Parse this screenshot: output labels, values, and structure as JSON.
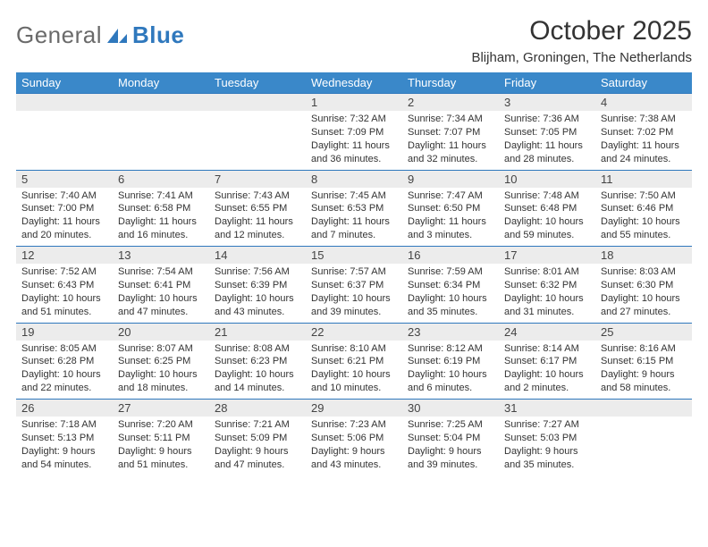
{
  "logo": {
    "general": "General",
    "blue": "Blue"
  },
  "title": "October 2025",
  "subtitle": "Blijham, Groningen, The Netherlands",
  "colors": {
    "header_bg": "#3a88c9",
    "border": "#2f78bd",
    "daynum_bg": "#ececec",
    "text": "#333333",
    "logo_gray": "#6a6a6a",
    "logo_blue": "#2f78bd"
  },
  "weekdays": [
    "Sunday",
    "Monday",
    "Tuesday",
    "Wednesday",
    "Thursday",
    "Friday",
    "Saturday"
  ],
  "weeks": [
    [
      null,
      null,
      null,
      {
        "n": "1",
        "sr": "Sunrise: 7:32 AM",
        "ss": "Sunset: 7:09 PM",
        "dl": "Daylight: 11 hours and 36 minutes."
      },
      {
        "n": "2",
        "sr": "Sunrise: 7:34 AM",
        "ss": "Sunset: 7:07 PM",
        "dl": "Daylight: 11 hours and 32 minutes."
      },
      {
        "n": "3",
        "sr": "Sunrise: 7:36 AM",
        "ss": "Sunset: 7:05 PM",
        "dl": "Daylight: 11 hours and 28 minutes."
      },
      {
        "n": "4",
        "sr": "Sunrise: 7:38 AM",
        "ss": "Sunset: 7:02 PM",
        "dl": "Daylight: 11 hours and 24 minutes."
      }
    ],
    [
      {
        "n": "5",
        "sr": "Sunrise: 7:40 AM",
        "ss": "Sunset: 7:00 PM",
        "dl": "Daylight: 11 hours and 20 minutes."
      },
      {
        "n": "6",
        "sr": "Sunrise: 7:41 AM",
        "ss": "Sunset: 6:58 PM",
        "dl": "Daylight: 11 hours and 16 minutes."
      },
      {
        "n": "7",
        "sr": "Sunrise: 7:43 AM",
        "ss": "Sunset: 6:55 PM",
        "dl": "Daylight: 11 hours and 12 minutes."
      },
      {
        "n": "8",
        "sr": "Sunrise: 7:45 AM",
        "ss": "Sunset: 6:53 PM",
        "dl": "Daylight: 11 hours and 7 minutes."
      },
      {
        "n": "9",
        "sr": "Sunrise: 7:47 AM",
        "ss": "Sunset: 6:50 PM",
        "dl": "Daylight: 11 hours and 3 minutes."
      },
      {
        "n": "10",
        "sr": "Sunrise: 7:48 AM",
        "ss": "Sunset: 6:48 PM",
        "dl": "Daylight: 10 hours and 59 minutes."
      },
      {
        "n": "11",
        "sr": "Sunrise: 7:50 AM",
        "ss": "Sunset: 6:46 PM",
        "dl": "Daylight: 10 hours and 55 minutes."
      }
    ],
    [
      {
        "n": "12",
        "sr": "Sunrise: 7:52 AM",
        "ss": "Sunset: 6:43 PM",
        "dl": "Daylight: 10 hours and 51 minutes."
      },
      {
        "n": "13",
        "sr": "Sunrise: 7:54 AM",
        "ss": "Sunset: 6:41 PM",
        "dl": "Daylight: 10 hours and 47 minutes."
      },
      {
        "n": "14",
        "sr": "Sunrise: 7:56 AM",
        "ss": "Sunset: 6:39 PM",
        "dl": "Daylight: 10 hours and 43 minutes."
      },
      {
        "n": "15",
        "sr": "Sunrise: 7:57 AM",
        "ss": "Sunset: 6:37 PM",
        "dl": "Daylight: 10 hours and 39 minutes."
      },
      {
        "n": "16",
        "sr": "Sunrise: 7:59 AM",
        "ss": "Sunset: 6:34 PM",
        "dl": "Daylight: 10 hours and 35 minutes."
      },
      {
        "n": "17",
        "sr": "Sunrise: 8:01 AM",
        "ss": "Sunset: 6:32 PM",
        "dl": "Daylight: 10 hours and 31 minutes."
      },
      {
        "n": "18",
        "sr": "Sunrise: 8:03 AM",
        "ss": "Sunset: 6:30 PM",
        "dl": "Daylight: 10 hours and 27 minutes."
      }
    ],
    [
      {
        "n": "19",
        "sr": "Sunrise: 8:05 AM",
        "ss": "Sunset: 6:28 PM",
        "dl": "Daylight: 10 hours and 22 minutes."
      },
      {
        "n": "20",
        "sr": "Sunrise: 8:07 AM",
        "ss": "Sunset: 6:25 PM",
        "dl": "Daylight: 10 hours and 18 minutes."
      },
      {
        "n": "21",
        "sr": "Sunrise: 8:08 AM",
        "ss": "Sunset: 6:23 PM",
        "dl": "Daylight: 10 hours and 14 minutes."
      },
      {
        "n": "22",
        "sr": "Sunrise: 8:10 AM",
        "ss": "Sunset: 6:21 PM",
        "dl": "Daylight: 10 hours and 10 minutes."
      },
      {
        "n": "23",
        "sr": "Sunrise: 8:12 AM",
        "ss": "Sunset: 6:19 PM",
        "dl": "Daylight: 10 hours and 6 minutes."
      },
      {
        "n": "24",
        "sr": "Sunrise: 8:14 AM",
        "ss": "Sunset: 6:17 PM",
        "dl": "Daylight: 10 hours and 2 minutes."
      },
      {
        "n": "25",
        "sr": "Sunrise: 8:16 AM",
        "ss": "Sunset: 6:15 PM",
        "dl": "Daylight: 9 hours and 58 minutes."
      }
    ],
    [
      {
        "n": "26",
        "sr": "Sunrise: 7:18 AM",
        "ss": "Sunset: 5:13 PM",
        "dl": "Daylight: 9 hours and 54 minutes."
      },
      {
        "n": "27",
        "sr": "Sunrise: 7:20 AM",
        "ss": "Sunset: 5:11 PM",
        "dl": "Daylight: 9 hours and 51 minutes."
      },
      {
        "n": "28",
        "sr": "Sunrise: 7:21 AM",
        "ss": "Sunset: 5:09 PM",
        "dl": "Daylight: 9 hours and 47 minutes."
      },
      {
        "n": "29",
        "sr": "Sunrise: 7:23 AM",
        "ss": "Sunset: 5:06 PM",
        "dl": "Daylight: 9 hours and 43 minutes."
      },
      {
        "n": "30",
        "sr": "Sunrise: 7:25 AM",
        "ss": "Sunset: 5:04 PM",
        "dl": "Daylight: 9 hours and 39 minutes."
      },
      {
        "n": "31",
        "sr": "Sunrise: 7:27 AM",
        "ss": "Sunset: 5:03 PM",
        "dl": "Daylight: 9 hours and 35 minutes."
      },
      null
    ]
  ]
}
